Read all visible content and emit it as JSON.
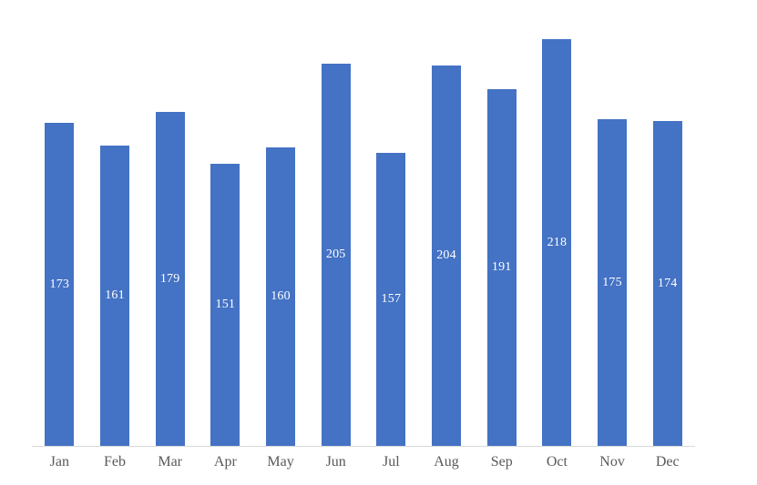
{
  "chart_data": {
    "type": "bar",
    "title": "",
    "xlabel": "",
    "ylabel": "",
    "categories": [
      "Jan",
      "Feb",
      "Mar",
      "Apr",
      "May",
      "Jun",
      "Jul",
      "Aug",
      "Sep",
      "Oct",
      "Nov",
      "Dec"
    ],
    "values": [
      173,
      161,
      179,
      151,
      160,
      205,
      157,
      204,
      191,
      218,
      175,
      174
    ],
    "ylim": [
      0,
      240
    ],
    "grid": false,
    "legend": false,
    "data_labels_position": "inside-center",
    "colors": {
      "bar": "#4472C4",
      "data_label": "#FFFFFF",
      "axis_line": "#D9D9D9",
      "tick_label": "#595959",
      "background": "#FFFFFF"
    }
  }
}
